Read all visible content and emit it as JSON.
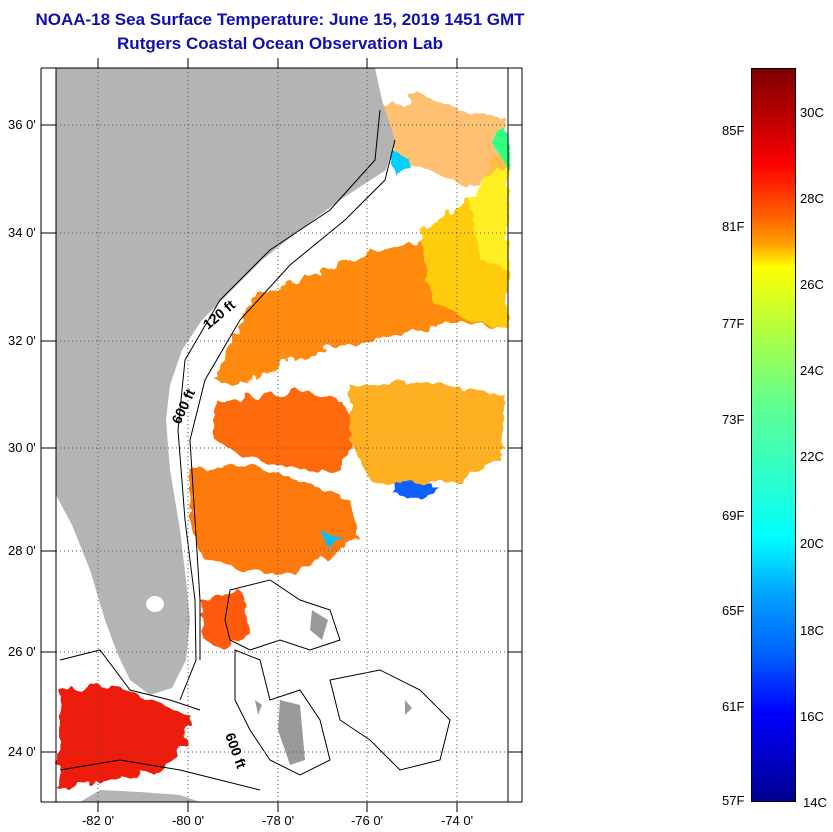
{
  "title": {
    "line1": "NOAA-18 Sea Surface Temperature:  June 15, 2019 1451 GMT",
    "line2": "Rutgers Coastal Ocean Observation Lab"
  },
  "map": {
    "lat_labels": [
      "36 0'",
      "34 0'",
      "32 0'",
      "30 0'",
      "28 0'",
      "26 0'",
      "24 0'"
    ],
    "lon_labels": [
      "-82 0'",
      "-80 0'",
      "-78 0'",
      "-76 0'",
      "-74 0'"
    ],
    "contour_labels": [
      "120 ft",
      "600 ft",
      "600 ft"
    ],
    "land_color": "#b4b4b4"
  },
  "colorbar": {
    "fahrenheit_labels": [
      "85F",
      "81F",
      "77F",
      "73F",
      "69F",
      "65F",
      "61F",
      "57F"
    ],
    "celsius_labels": [
      "30C",
      "28C",
      "26C",
      "24C",
      "22C",
      "20C",
      "18C",
      "16C",
      "14C"
    ],
    "colormap": "jet"
  }
}
